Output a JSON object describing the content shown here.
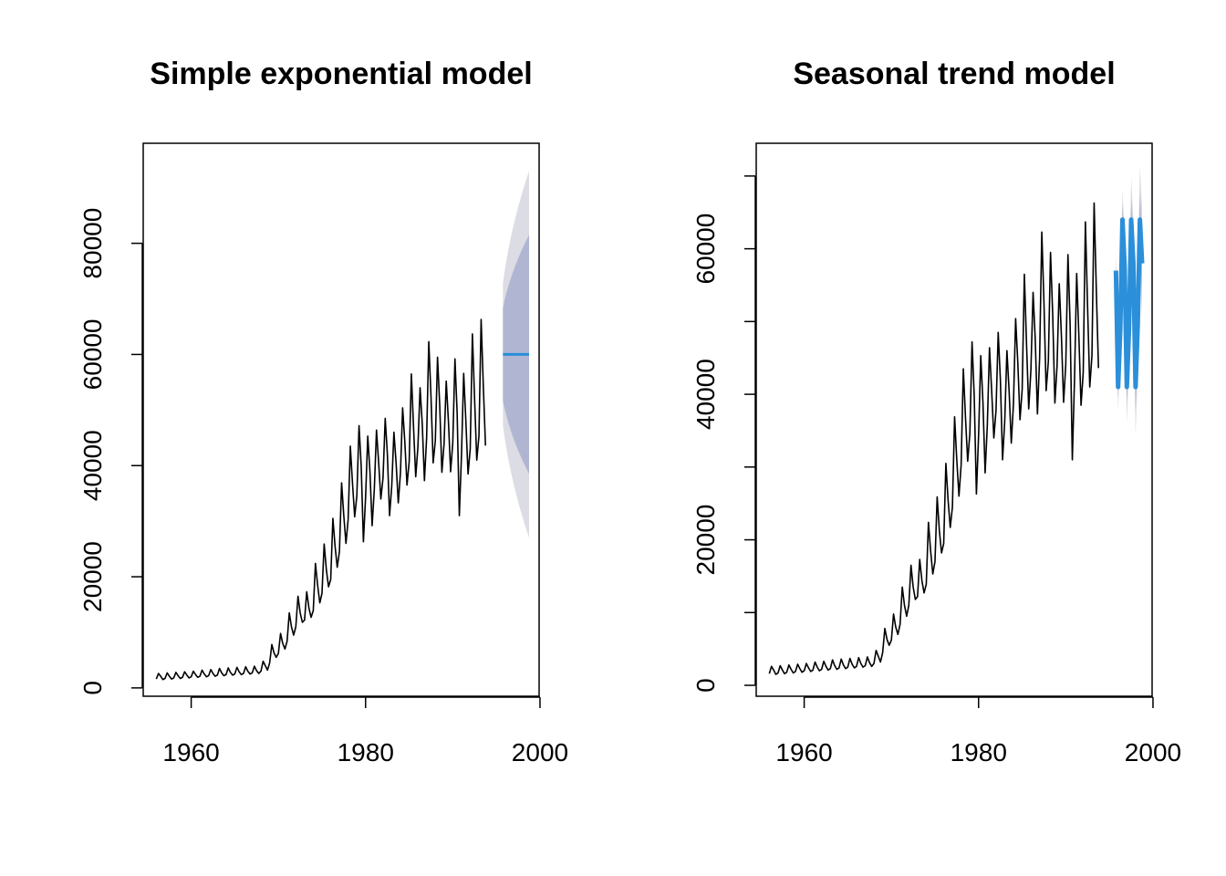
{
  "chart_data": [
    {
      "type": "line",
      "title": "Simple exponential model",
      "xlabel": "",
      "ylabel": "",
      "xlim": [
        1954.5,
        1999.9
      ],
      "ylim": [
        -1500,
        98000
      ],
      "x_ticks": [
        1960,
        1980,
        2000
      ],
      "x_tick_labels": [
        "1960",
        "1980",
        "2000"
      ],
      "y_ticks": [
        0,
        20000,
        40000,
        60000,
        80000
      ],
      "y_tick_labels": [
        "0",
        "20000",
        "40000",
        "60000",
        "80000"
      ],
      "grid": false,
      "history": {
        "start": 1956.0,
        "frequency": 4,
        "values": [
          1600,
          2600,
          2100,
          1500,
          1700,
          2700,
          2100,
          1600,
          1800,
          2800,
          2200,
          1700,
          1900,
          2900,
          2300,
          1800,
          2000,
          3000,
          2400,
          1900,
          2100,
          3200,
          2500,
          2000,
          2200,
          3300,
          2600,
          2100,
          2300,
          3500,
          2700,
          2200,
          2400,
          3600,
          2800,
          2300,
          2500,
          3700,
          2900,
          2400,
          2600,
          3800,
          3000,
          2500,
          2700,
          3900,
          3100,
          2600,
          3000,
          4800,
          4000,
          3200,
          4500,
          7800,
          6300,
          5500,
          6200,
          9800,
          8000,
          7000,
          8400,
          13500,
          11000,
          9500,
          11000,
          16500,
          13500,
          11800,
          12200,
          17300,
          14400,
          12700,
          13900,
          22400,
          18500,
          15300,
          17000,
          25900,
          21300,
          18200,
          19500,
          30500,
          25500,
          21700,
          24500,
          36900,
          31000,
          26000,
          30300,
          43500,
          36800,
          30800,
          34600,
          47200,
          39800,
          26300,
          34300,
          45300,
          38900,
          29200,
          35700,
          46400,
          40500,
          34000,
          37800,
          48500,
          42000,
          31000,
          36300,
          46000,
          40500,
          33300,
          38700,
          50400,
          44300,
          36500,
          40700,
          56500,
          46900,
          38000,
          43300,
          54000,
          47500,
          37300,
          45000,
          62300,
          52500,
          40500,
          44500,
          59500,
          51000,
          38800,
          43900,
          55200,
          48000,
          38900,
          44100,
          59200,
          49500,
          31000,
          42000,
          56600,
          48000,
          38500,
          43000,
          63700,
          52000,
          41000,
          45300,
          66300,
          54400,
          43600
        ]
      },
      "forecast": {
        "start": 1995.75,
        "end": 1998.75,
        "mean": 60000,
        "lower80_end": 38500,
        "upper80_end": 81500,
        "lower95_end": 27000,
        "upper95_end": 93000
      },
      "colors": {
        "series": "#000000",
        "forecast": "#2B8FD9",
        "band80": "#B0B5D2",
        "band95": "#DCDCE4"
      }
    },
    {
      "type": "line",
      "title": "Seasonal trend model",
      "xlabel": "",
      "ylabel": "",
      "xlim": [
        1954.5,
        1999.9
      ],
      "ylim": [
        -1500,
        74500
      ],
      "x_ticks": [
        1960,
        1980,
        2000
      ],
      "x_tick_labels": [
        "1960",
        "1980",
        "2000"
      ],
      "y_ticks": [
        0,
        10000,
        20000,
        30000,
        40000,
        50000,
        60000,
        70000
      ],
      "y_tick_labels": [
        "0",
        "",
        "20000",
        "",
        "40000",
        "",
        "60000",
        ""
      ],
      "grid": false,
      "history": {
        "start": 1956.0,
        "frequency": 4,
        "values": [
          1600,
          2600,
          2100,
          1500,
          1700,
          2700,
          2100,
          1600,
          1800,
          2800,
          2200,
          1700,
          1900,
          2900,
          2300,
          1800,
          2000,
          3000,
          2400,
          1900,
          2100,
          3200,
          2500,
          2000,
          2200,
          3300,
          2600,
          2100,
          2300,
          3500,
          2700,
          2200,
          2400,
          3600,
          2800,
          2300,
          2500,
          3700,
          2900,
          2400,
          2600,
          3800,
          3000,
          2500,
          2700,
          3900,
          3100,
          2600,
          3000,
          4800,
          4000,
          3200,
          4500,
          7800,
          6300,
          5500,
          6200,
          9800,
          8000,
          7000,
          8400,
          13500,
          11000,
          9500,
          11000,
          16500,
          13500,
          11800,
          12200,
          17300,
          14400,
          12700,
          13900,
          22400,
          18500,
          15300,
          17000,
          25900,
          21300,
          18200,
          19500,
          30500,
          25500,
          21700,
          24500,
          36900,
          31000,
          26000,
          30300,
          43500,
          36800,
          30800,
          34600,
          47200,
          39800,
          26300,
          34300,
          45300,
          38900,
          29200,
          35700,
          46400,
          40500,
          34000,
          37800,
          48500,
          42000,
          31000,
          36300,
          46000,
          40500,
          33300,
          38700,
          50400,
          44300,
          36500,
          40700,
          56500,
          46900,
          38000,
          43300,
          54000,
          47500,
          37300,
          45000,
          62300,
          52500,
          40500,
          44500,
          59500,
          51000,
          38800,
          43900,
          55200,
          48000,
          38900,
          44100,
          59200,
          49500,
          31000,
          42000,
          56600,
          48000,
          38500,
          43000,
          63700,
          52000,
          41000,
          45300,
          66300,
          54400,
          43600
        ]
      },
      "forecast": {
        "start": 1995.75,
        "frequency": 4,
        "mean": [
          57000,
          41000,
          49000,
          64000,
          57500,
          41000,
          49000,
          64000,
          58000,
          41000,
          49500,
          64000,
          58000
        ],
        "band80_halfwidth": [
          1500,
          1700,
          1900,
          2100,
          2300,
          2500,
          2700,
          2900,
          3100,
          3300,
          3500,
          3700,
          3900
        ],
        "band95_halfwidth": [
          3000,
          3400,
          3800,
          4200,
          4600,
          5000,
          5400,
          5800,
          6200,
          6600,
          7000,
          7400,
          7800
        ]
      },
      "colors": {
        "series": "#000000",
        "forecast": "#2B8FD9",
        "band80": "#B0B5D2",
        "band95": "#DCDCE4"
      }
    }
  ]
}
